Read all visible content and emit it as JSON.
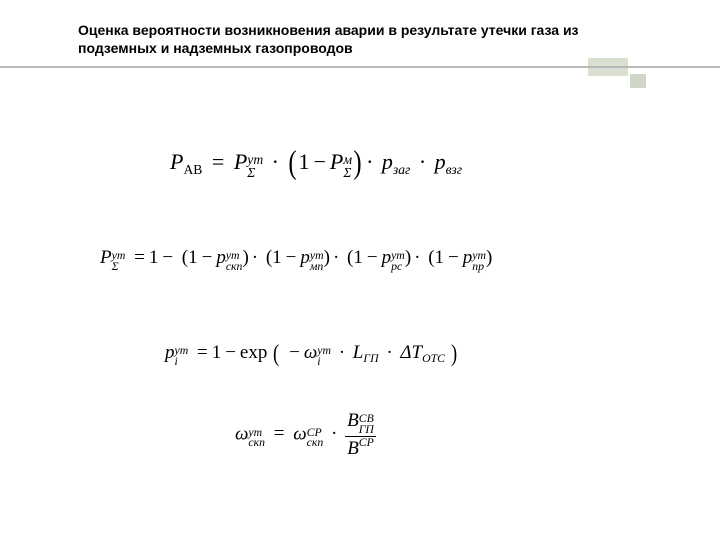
{
  "title": "Оценка вероятности возникновения аварии в результате утечки газа из подземных и надземных газопроводов",
  "colors": {
    "rule": "#b8b8b8",
    "accent": "#d9e0cf",
    "accent2": "#d0d6c6",
    "text": "#000000",
    "bg": "#ffffff"
  },
  "formulas": {
    "f1": {
      "type": "equation",
      "lhs": {
        "base": "P",
        "sub": "АВ"
      },
      "rhs_terms": [
        {
          "base": "P",
          "sub": "Σ",
          "sup": "ут"
        },
        {
          "paren_one_minus": {
            "base": "P",
            "sub": "Σ",
            "sup": "м"
          }
        },
        {
          "base": "p",
          "sub": "заг"
        },
        {
          "base": "p",
          "sub": "взг"
        }
      ],
      "fontsize": 22
    },
    "f2": {
      "type": "equation",
      "lhs": {
        "base": "P",
        "sub": "Σ",
        "sup": "ут"
      },
      "rhs": "1 − (1 − p_скп^ут)·(1 − p_мп^ут)·(1 − p_рс^ут)·(1 − p_пр^ут)",
      "terms_subs": [
        "скп",
        "мп",
        "рс",
        "пр"
      ],
      "terms_sup": "ут",
      "fontsize": 19
    },
    "f3": {
      "type": "equation",
      "lhs": {
        "base": "p",
        "sub": "i",
        "sup": "ут"
      },
      "rhs_prefix": "1 − exp",
      "arg_terms": [
        {
          "neg": true,
          "base": "ω",
          "sub": "i",
          "sup": "ут"
        },
        {
          "base": "L",
          "sub": "ГП"
        },
        {
          "base": "ΔT",
          "sub": "ОТС"
        }
      ],
      "fontsize": 19
    },
    "f4": {
      "type": "equation",
      "lhs": {
        "base": "ω",
        "sub": "скп",
        "sup": "ут"
      },
      "rhs_factor": {
        "base": "ω",
        "sub": "скп",
        "sup": "СР"
      },
      "fraction": {
        "num": {
          "base": "B",
          "sub": "ГП",
          "sup": "СВ"
        },
        "den": {
          "base": "B",
          "sup": "СР"
        }
      },
      "fontsize": 19
    }
  }
}
